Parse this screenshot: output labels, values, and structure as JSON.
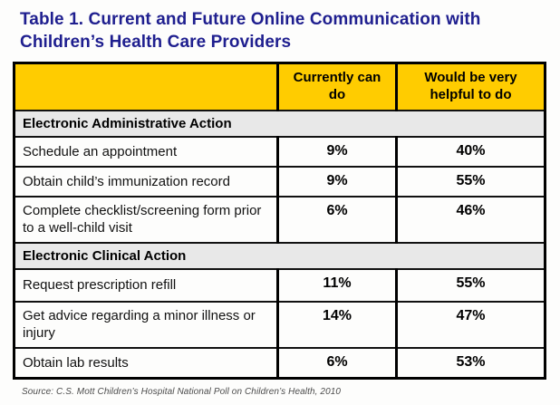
{
  "title": "Table 1. Current and Future Online Communication with Children’s Health Care Providers",
  "table": {
    "column_headers": [
      "Currently can do",
      "Would be very helpful to do"
    ],
    "sections": [
      {
        "label": "Electronic Administrative  Action",
        "rows": [
          {
            "label": "Schedule an appointment",
            "currently": "9%",
            "helpful": "40%"
          },
          {
            "label": "Obtain child’s immunization record",
            "currently": "9%",
            "helpful": "55%"
          },
          {
            "label": "Complete checklist/screening form prior to a well-child visit",
            "currently": "6%",
            "helpful": "46%"
          }
        ]
      },
      {
        "label": "Electronic Clinical Action",
        "rows": [
          {
            "label": "Request prescription refill",
            "currently": "11%",
            "helpful": "55%"
          },
          {
            "label": "Get advice regarding a minor illness or injury",
            "currently": "14%",
            "helpful": "47%"
          },
          {
            "label": "Obtain lab results",
            "currently": "6%",
            "helpful": "53%"
          }
        ]
      }
    ]
  },
  "source": "Source: C.S. Mott Children’s Hospital National Poll on Children’s Health, 2010",
  "colors": {
    "header_gold": "#FFCC00",
    "section_gray": "#E8E8E8",
    "title_blue": "#1F1F8F",
    "border_black": "#000000"
  },
  "chart_data": {
    "type": "table",
    "title": "Table 1. Current and Future Online Communication with Children’s Health Care Providers",
    "columns": [
      "Currently can do",
      "Would be very helpful to do"
    ],
    "units": "percent",
    "sections": [
      {
        "label": "Electronic Administrative Action",
        "rows": [
          {
            "label": "Schedule an appointment",
            "currently_can_do": 9,
            "would_be_very_helpful_to_do": 40
          },
          {
            "label": "Obtain child’s immunization record",
            "currently_can_do": 9,
            "would_be_very_helpful_to_do": 55
          },
          {
            "label": "Complete checklist/screening form prior to a well-child visit",
            "currently_can_do": 6,
            "would_be_very_helpful_to_do": 46
          }
        ]
      },
      {
        "label": "Electronic Clinical Action",
        "rows": [
          {
            "label": "Request prescription refill",
            "currently_can_do": 11,
            "would_be_very_helpful_to_do": 55
          },
          {
            "label": "Get advice regarding a minor illness or injury",
            "currently_can_do": 14,
            "would_be_very_helpful_to_do": 47
          },
          {
            "label": "Obtain lab results",
            "currently_can_do": 6,
            "would_be_very_helpful_to_do": 53
          }
        ]
      }
    ],
    "source": "Source: C.S. Mott Children’s Hospital National Poll on Children’s Health, 2010"
  }
}
